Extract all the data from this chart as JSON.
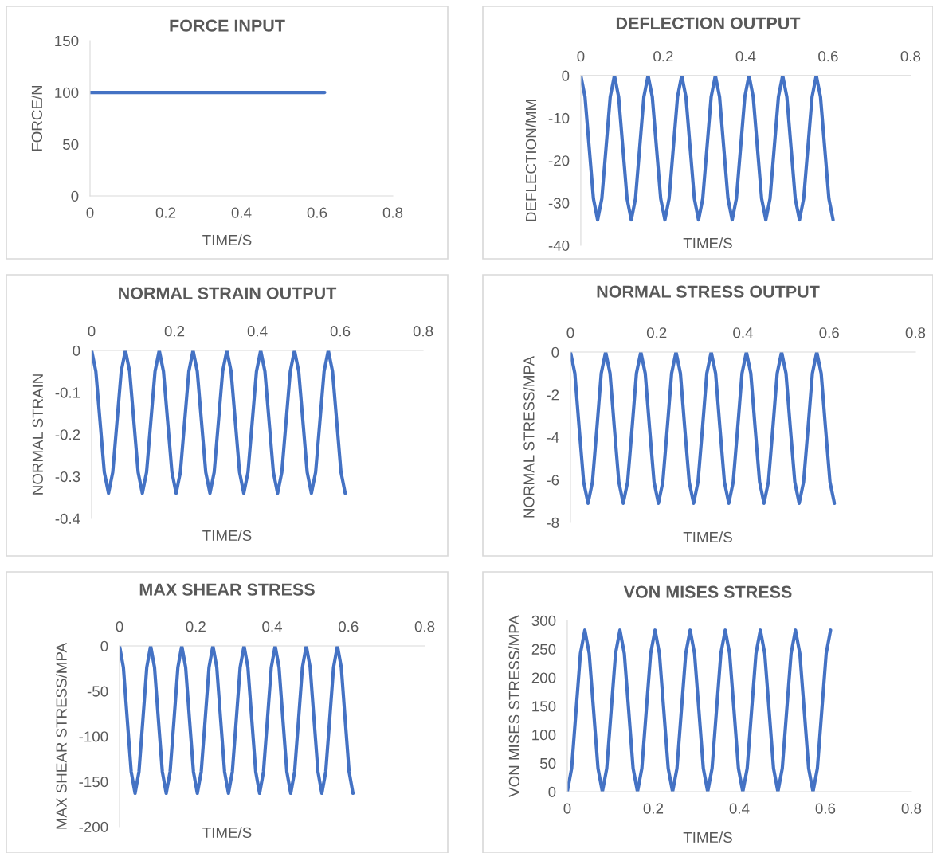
{
  "chart_data": [
    {
      "type": "line",
      "title": "FORCE INPUT",
      "xlabel": "TIME/S",
      "ylabel": "FORCE/N",
      "x": [
        0,
        0.62
      ],
      "series": [
        {
          "color": "#4472c4",
          "values": [
            100,
            100
          ]
        }
      ],
      "xlim": [
        0,
        0.8
      ],
      "ylim": [
        0,
        150
      ],
      "xticks": [
        0,
        0.2,
        0.4,
        0.6,
        0.8
      ],
      "yticks": [
        0,
        50,
        100,
        150
      ]
    },
    {
      "type": "line",
      "title": "DEFLECTION OUTPUT",
      "xlabel": "TIME/S",
      "ylabel": "DEFLECTION/MM",
      "x": [
        0,
        0.0102,
        0.0204,
        0.0306,
        0.0408,
        0.051,
        0.0612,
        0.0714,
        0.0816,
        0.0918,
        0.102,
        0.1122,
        0.1224,
        0.1326,
        0.1428,
        0.153,
        0.1632,
        0.1734,
        0.1836,
        0.1938,
        0.204,
        0.2142,
        0.2244,
        0.2346,
        0.2448,
        0.255,
        0.2652,
        0.2754,
        0.2856,
        0.2958,
        0.306,
        0.3162,
        0.3264,
        0.3366,
        0.3468,
        0.357,
        0.3672,
        0.3774,
        0.3876,
        0.3978,
        0.408,
        0.4182,
        0.4284,
        0.4386,
        0.4488,
        0.459,
        0.4692,
        0.4794,
        0.4896,
        0.4998,
        0.51,
        0.5202,
        0.5304,
        0.5406,
        0.5508,
        0.561,
        0.5712,
        0.5814,
        0.5916,
        0.6018,
        0.612
      ],
      "series": [
        {
          "color": "#4472c4",
          "values": [
            0,
            -5,
            -17,
            -29,
            -34,
            -29,
            -17,
            -5,
            0,
            -5,
            -17,
            -29,
            -34,
            -29,
            -17,
            -5,
            0,
            -5,
            -17,
            -29,
            -34,
            -29,
            -17,
            -5,
            0,
            -5,
            -17,
            -29,
            -34,
            -29,
            -17,
            -5,
            0,
            -5,
            -17,
            -29,
            -34,
            -29,
            -17,
            -5,
            0,
            -5,
            -17,
            -29,
            -34,
            -29,
            -17,
            -5,
            0,
            -5,
            -17,
            -29,
            -34,
            -29,
            -17,
            -5,
            0,
            -5,
            -17,
            -29,
            -34
          ]
        }
      ],
      "xlim": [
        0,
        0.8
      ],
      "ylim": [
        -40,
        0
      ],
      "xticks": [
        0,
        0.2,
        0.4,
        0.6,
        0.8
      ],
      "yticks": [
        -40,
        -30,
        -20,
        -10,
        0
      ]
    },
    {
      "type": "line",
      "title": "NORMAL STRAIN OUTPUT",
      "xlabel": "TIME/S",
      "ylabel": "NORMAL STRAIN",
      "x": [
        0,
        0.0102,
        0.0204,
        0.0306,
        0.0408,
        0.051,
        0.0612,
        0.0714,
        0.0816,
        0.0918,
        0.102,
        0.1122,
        0.1224,
        0.1326,
        0.1428,
        0.153,
        0.1632,
        0.1734,
        0.1836,
        0.1938,
        0.204,
        0.2142,
        0.2244,
        0.2346,
        0.2448,
        0.255,
        0.2652,
        0.2754,
        0.2856,
        0.2958,
        0.306,
        0.3162,
        0.3264,
        0.3366,
        0.3468,
        0.357,
        0.3672,
        0.3774,
        0.3876,
        0.3978,
        0.408,
        0.4182,
        0.4284,
        0.4386,
        0.4488,
        0.459,
        0.4692,
        0.4794,
        0.4896,
        0.4998,
        0.51,
        0.5202,
        0.5304,
        0.5406,
        0.5508,
        0.561,
        0.5712,
        0.5814,
        0.5916,
        0.6018,
        0.612
      ],
      "series": [
        {
          "color": "#4472c4",
          "values": [
            0,
            -0.05,
            -0.17,
            -0.29,
            -0.34,
            -0.29,
            -0.17,
            -0.05,
            0,
            -0.05,
            -0.17,
            -0.29,
            -0.34,
            -0.29,
            -0.17,
            -0.05,
            0,
            -0.05,
            -0.17,
            -0.29,
            -0.34,
            -0.29,
            -0.17,
            -0.05,
            0,
            -0.05,
            -0.17,
            -0.29,
            -0.34,
            -0.29,
            -0.17,
            -0.05,
            0,
            -0.05,
            -0.17,
            -0.29,
            -0.34,
            -0.29,
            -0.17,
            -0.05,
            0,
            -0.05,
            -0.17,
            -0.29,
            -0.34,
            -0.29,
            -0.17,
            -0.05,
            0,
            -0.05,
            -0.17,
            -0.29,
            -0.34,
            -0.29,
            -0.17,
            -0.05,
            0,
            -0.05,
            -0.17,
            -0.29,
            -0.34
          ]
        }
      ],
      "xlim": [
        0,
        0.8
      ],
      "ylim": [
        -0.4,
        0
      ],
      "xticks": [
        0,
        0.2,
        0.4,
        0.6,
        0.8
      ],
      "yticks": [
        -0.4,
        -0.3,
        -0.2,
        -0.1,
        0
      ]
    },
    {
      "type": "line",
      "title": "NORMAL STRESS OUTPUT",
      "xlabel": "TIME/S",
      "ylabel": "NORMAL STRESS/MPA",
      "x": [
        0,
        0.0102,
        0.0204,
        0.0306,
        0.0408,
        0.051,
        0.0612,
        0.0714,
        0.0816,
        0.0918,
        0.102,
        0.1122,
        0.1224,
        0.1326,
        0.1428,
        0.153,
        0.1632,
        0.1734,
        0.1836,
        0.1938,
        0.204,
        0.2142,
        0.2244,
        0.2346,
        0.2448,
        0.255,
        0.2652,
        0.2754,
        0.2856,
        0.2958,
        0.306,
        0.3162,
        0.3264,
        0.3366,
        0.3468,
        0.357,
        0.3672,
        0.3774,
        0.3876,
        0.3978,
        0.408,
        0.4182,
        0.4284,
        0.4386,
        0.4488,
        0.459,
        0.4692,
        0.4794,
        0.4896,
        0.4998,
        0.51,
        0.5202,
        0.5304,
        0.5406,
        0.5508,
        0.561,
        0.5712,
        0.5814,
        0.5916,
        0.6018,
        0.612
      ],
      "series": [
        {
          "color": "#4472c4",
          "values": [
            0,
            -1,
            -3.6,
            -6.1,
            -7.1,
            -6.1,
            -3.6,
            -1,
            0,
            -1,
            -3.6,
            -6.1,
            -7.1,
            -6.1,
            -3.6,
            -1,
            0,
            -1,
            -3.6,
            -6.1,
            -7.1,
            -6.1,
            -3.6,
            -1,
            0,
            -1,
            -3.6,
            -6.1,
            -7.1,
            -6.1,
            -3.6,
            -1,
            0,
            -1,
            -3.6,
            -6.1,
            -7.1,
            -6.1,
            -3.6,
            -1,
            0,
            -1,
            -3.6,
            -6.1,
            -7.1,
            -6.1,
            -3.6,
            -1,
            0,
            -1,
            -3.6,
            -6.1,
            -7.1,
            -6.1,
            -3.6,
            -1,
            0,
            -1,
            -3.6,
            -6.1,
            -7.1
          ]
        }
      ],
      "xlim": [
        0,
        0.8
      ],
      "ylim": [
        -8,
        0
      ],
      "xticks": [
        0,
        0.2,
        0.4,
        0.6,
        0.8
      ],
      "yticks": [
        -8,
        -6,
        -4,
        -2,
        0
      ]
    },
    {
      "type": "line",
      "title": "MAX SHEAR STRESS",
      "xlabel": "TIME/S",
      "ylabel": "MAX SHEAR STRESS/MPA",
      "x": [
        0,
        0.0102,
        0.0204,
        0.0306,
        0.0408,
        0.051,
        0.0612,
        0.0714,
        0.0816,
        0.0918,
        0.102,
        0.1122,
        0.1224,
        0.1326,
        0.1428,
        0.153,
        0.1632,
        0.1734,
        0.1836,
        0.1938,
        0.204,
        0.2142,
        0.2244,
        0.2346,
        0.2448,
        0.255,
        0.2652,
        0.2754,
        0.2856,
        0.2958,
        0.306,
        0.3162,
        0.3264,
        0.3366,
        0.3468,
        0.357,
        0.3672,
        0.3774,
        0.3876,
        0.3978,
        0.408,
        0.4182,
        0.4284,
        0.4386,
        0.4488,
        0.459,
        0.4692,
        0.4794,
        0.4896,
        0.4998,
        0.51,
        0.5202,
        0.5304,
        0.5406,
        0.5508,
        0.561,
        0.5712,
        0.5814,
        0.5916,
        0.6018,
        0.612
      ],
      "series": [
        {
          "color": "#4472c4",
          "values": [
            0,
            -24,
            -82,
            -139,
            -163,
            -139,
            -82,
            -24,
            0,
            -24,
            -82,
            -139,
            -163,
            -139,
            -82,
            -24,
            0,
            -24,
            -82,
            -139,
            -163,
            -139,
            -82,
            -24,
            0,
            -24,
            -82,
            -139,
            -163,
            -139,
            -82,
            -24,
            0,
            -24,
            -82,
            -139,
            -163,
            -139,
            -82,
            -24,
            0,
            -24,
            -82,
            -139,
            -163,
            -139,
            -82,
            -24,
            0,
            -24,
            -82,
            -139,
            -163,
            -139,
            -82,
            -24,
            0,
            -24,
            -82,
            -139,
            -163
          ]
        }
      ],
      "xlim": [
        0,
        0.8
      ],
      "ylim": [
        -200,
        0
      ],
      "xticks": [
        0,
        0.2,
        0.4,
        0.6,
        0.8
      ],
      "yticks": [
        -200,
        -150,
        -100,
        -50,
        0
      ]
    },
    {
      "type": "line",
      "title": "VON MISES STRESS",
      "xlabel": "TIME/S",
      "ylabel": "VON MISES STRESS/MPA",
      "x": [
        0,
        0.0102,
        0.0204,
        0.0306,
        0.0408,
        0.051,
        0.0612,
        0.0714,
        0.0816,
        0.0918,
        0.102,
        0.1122,
        0.1224,
        0.1326,
        0.1428,
        0.153,
        0.1632,
        0.1734,
        0.1836,
        0.1938,
        0.204,
        0.2142,
        0.2244,
        0.2346,
        0.2448,
        0.255,
        0.2652,
        0.2754,
        0.2856,
        0.2958,
        0.306,
        0.3162,
        0.3264,
        0.3366,
        0.3468,
        0.357,
        0.3672,
        0.3774,
        0.3876,
        0.3978,
        0.408,
        0.4182,
        0.4284,
        0.4386,
        0.4488,
        0.459,
        0.4692,
        0.4794,
        0.4896,
        0.4998,
        0.51,
        0.5202,
        0.5304,
        0.5406,
        0.5508,
        0.561,
        0.5712,
        0.5814,
        0.5916,
        0.6018,
        0.612
      ],
      "series": [
        {
          "color": "#4472c4",
          "values": [
            0,
            41,
            142,
            242,
            283,
            242,
            142,
            41,
            0,
            41,
            142,
            242,
            283,
            242,
            142,
            41,
            0,
            41,
            142,
            242,
            283,
            242,
            142,
            41,
            0,
            41,
            142,
            242,
            283,
            242,
            142,
            41,
            0,
            41,
            142,
            242,
            283,
            242,
            142,
            41,
            0,
            41,
            142,
            242,
            283,
            242,
            142,
            41,
            0,
            41,
            142,
            242,
            283,
            242,
            142,
            41,
            0,
            41,
            142,
            242,
            283
          ]
        }
      ],
      "xlim": [
        0,
        0.8
      ],
      "ylim": [
        0,
        300
      ],
      "xticks": [
        0,
        0.2,
        0.4,
        0.6,
        0.8
      ],
      "yticks": [
        0,
        50,
        100,
        150,
        200,
        250,
        300
      ]
    }
  ]
}
